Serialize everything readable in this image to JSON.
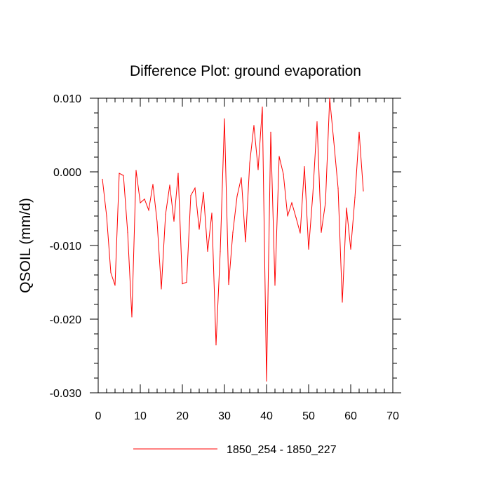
{
  "chart_data": {
    "type": "line",
    "title": "Difference Plot: ground evaporation",
    "xlabel": "",
    "ylabel": "QSOIL  (mm/d)",
    "xlim": [
      0,
      70
    ],
    "ylim": [
      -0.03,
      0.01
    ],
    "x_ticks": [
      0,
      10,
      20,
      30,
      40,
      50,
      60,
      70
    ],
    "x_tick_labels": [
      "0",
      "10",
      "20",
      "30",
      "40",
      "50",
      "60",
      "70"
    ],
    "y_ticks": [
      -0.03,
      -0.02,
      -0.01,
      0.0,
      0.01
    ],
    "y_tick_labels": [
      "-0.030",
      "-0.020",
      "-0.010",
      "0.000",
      "0.010"
    ],
    "series": [
      {
        "name": "1850_254 - 1850_227",
        "color": "#ff0000",
        "x": [
          1,
          2,
          3,
          4,
          5,
          6,
          7,
          8,
          9,
          10,
          11,
          12,
          13,
          14,
          15,
          16,
          17,
          18,
          19,
          20,
          21,
          22,
          23,
          24,
          25,
          26,
          27,
          28,
          29,
          30,
          31,
          32,
          33,
          34,
          35,
          36,
          37,
          38,
          39,
          40,
          41,
          42,
          43,
          44,
          45,
          46,
          47,
          48,
          49,
          50,
          51,
          52,
          53,
          54,
          55,
          56,
          57,
          58,
          59,
          60,
          61,
          62,
          63
        ],
        "values": [
          -0.001,
          -0.006,
          -0.0137,
          -0.0154,
          -0.0002,
          -0.0005,
          -0.0082,
          -0.0197,
          0.0002,
          -0.0042,
          -0.0037,
          -0.0052,
          -0.0017,
          -0.0068,
          -0.0159,
          -0.0058,
          -0.0018,
          -0.0067,
          -0.0002,
          -0.0152,
          -0.015,
          -0.0032,
          -0.0022,
          -0.0078,
          -0.0028,
          -0.0108,
          -0.0056,
          -0.0235,
          -0.0108,
          0.0072,
          -0.0153,
          -0.0082,
          -0.0033,
          -0.0008,
          -0.0095,
          0.0012,
          0.0063,
          0.0003,
          0.0088,
          -0.0284,
          0.0054,
          -0.0154,
          0.0021,
          -0.0003,
          -0.006,
          -0.0042,
          -0.0062,
          -0.0083,
          0.0007,
          -0.0105,
          -0.003,
          0.0068,
          -0.0082,
          -0.0042,
          0.01,
          0.004,
          -0.0022,
          -0.0177,
          -0.0049,
          -0.0105,
          -0.0035,
          0.0054,
          -0.0026
        ]
      }
    ],
    "legend": {
      "placement": "bottom-center",
      "label": "1850_254 - 1850_227"
    }
  }
}
